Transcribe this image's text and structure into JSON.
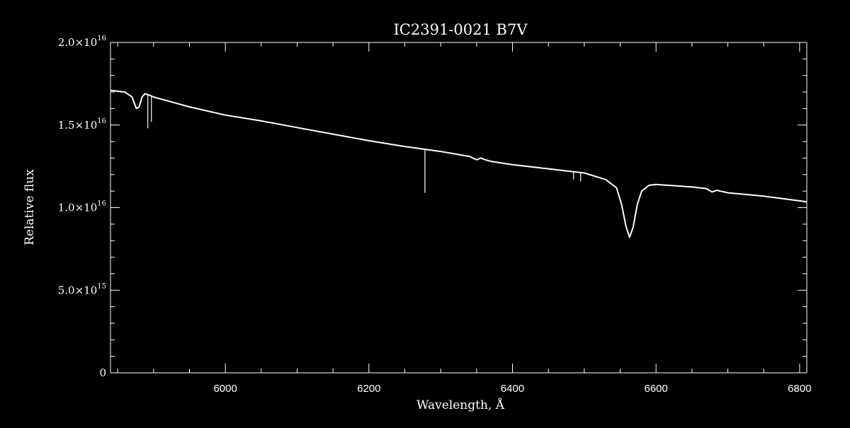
{
  "chart_data": {
    "type": "line",
    "title": "IC2391-0021   B7V",
    "xlabel": "Wavelength, Å",
    "ylabel": "Relative flux",
    "xlim": [
      5840,
      6810
    ],
    "ylim": [
      0,
      2e+16
    ],
    "x_ticks": [
      {
        "value": 6000,
        "label": "6000"
      },
      {
        "value": 6200,
        "label": "6200"
      },
      {
        "value": 6400,
        "label": "6400"
      },
      {
        "value": 6600,
        "label": "6600"
      },
      {
        "value": 6800,
        "label": "6800"
      }
    ],
    "y_ticks": [
      {
        "value": 0,
        "mantissa": "0",
        "exponent": ""
      },
      {
        "value": 5000000000000000.0,
        "mantissa": "5.0×10",
        "exponent": "15"
      },
      {
        "value": 1e+16,
        "mantissa": "1.0×10",
        "exponent": "16"
      },
      {
        "value": 1.5e+16,
        "mantissa": "1.5×10",
        "exponent": "16"
      },
      {
        "value": 2e+16,
        "mantissa": "2.0×10",
        "exponent": "16"
      }
    ],
    "grid": false,
    "line_color": "#ffffff",
    "background_color": "#000000",
    "series": [
      {
        "x": [
          5840,
          5860,
          5870,
          5876,
          5880,
          5884,
          5888,
          5895,
          5900,
          5950,
          6000,
          6050,
          6100,
          6150,
          6200,
          6250,
          6300,
          6340,
          6350,
          6356,
          6362,
          6370,
          6400,
          6450,
          6500,
          6530,
          6545,
          6552,
          6558,
          6563,
          6568,
          6574,
          6580,
          6590,
          6600,
          6650,
          6670,
          6678,
          6685,
          6700,
          6750,
          6810
        ],
        "y": [
          1.71e+16,
          1.7e+16,
          1.67e+16,
          1.6e+16,
          1.61e+16,
          1.67e+16,
          1.69e+16,
          1.68e+16,
          1.67e+16,
          1.61e+16,
          1.56e+16,
          1.525e+16,
          1.485e+16,
          1.445e+16,
          1.405e+16,
          1.37e+16,
          1.34e+16,
          1.31e+16,
          1.29e+16,
          1.3e+16,
          1.29e+16,
          1.28e+16,
          1.26e+16,
          1.235e+16,
          1.21e+16,
          1.17e+16,
          1.12e+16,
          1.02e+16,
          8900000000000000.0,
          8200000000000000.0,
          8800000000000000.0,
          1.02e+16,
          1.1e+16,
          1.135e+16,
          1.14e+16,
          1.125e+16,
          1.115e+16,
          1.095e+16,
          1.105e+16,
          1.09e+16,
          1.07e+16,
          1.035e+16
        ]
      }
    ],
    "absorption_spikes": [
      {
        "x": 5892,
        "y_min": 1.48e+16
      },
      {
        "x": 5897,
        "y_min": 1.52e+16
      },
      {
        "x": 6278,
        "y_min": 1.09e+16
      },
      {
        "x": 6485,
        "y_min": 1.17e+16
      },
      {
        "x": 6495,
        "y_min": 1.16e+16
      }
    ]
  }
}
